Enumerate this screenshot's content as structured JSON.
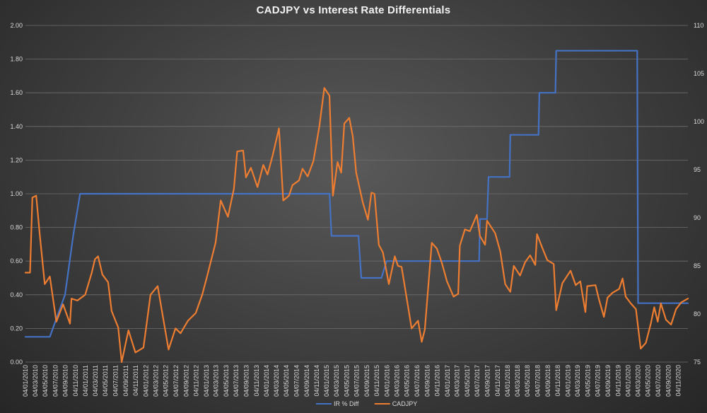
{
  "chart_data": {
    "type": "line",
    "title": "CADJPY vs Interest Rate Differentials",
    "legend_placement": "bottom",
    "grid": true,
    "y_left": {
      "lim": [
        0,
        2
      ],
      "ticks": [
        "0.00",
        "0.20",
        "0.40",
        "0.60",
        "0.80",
        "1.00",
        "1.20",
        "1.40",
        "1.60",
        "1.80",
        "2.00"
      ]
    },
    "y_right": {
      "lim": [
        75,
        110
      ],
      "ticks": [
        "75",
        "80",
        "85",
        "90",
        "95",
        "100",
        "105",
        "110"
      ]
    },
    "x_range": [
      "2010-01-04",
      "2020-12-31"
    ],
    "x_ticks": [
      "04/01/2010",
      "04/03/2010",
      "04/05/2010",
      "04/07/2010",
      "04/09/2010",
      "04/11/2010",
      "04/01/2011",
      "04/03/2011",
      "04/05/2011",
      "04/07/2011",
      "04/09/2011",
      "04/11/2011",
      "04/01/2012",
      "04/03/2012",
      "04/05/2012",
      "04/07/2012",
      "04/09/2012",
      "04/11/2012",
      "04/01/2013",
      "04/03/2013",
      "04/05/2013",
      "04/07/2013",
      "04/09/2013",
      "04/11/2013",
      "04/01/2014",
      "04/03/2014",
      "04/05/2014",
      "04/07/2014",
      "04/09/2014",
      "04/11/2014",
      "04/01/2015",
      "04/03/2015",
      "04/05/2015",
      "04/07/2015",
      "04/09/2015",
      "04/11/2015",
      "04/01/2016",
      "04/03/2016",
      "04/05/2016",
      "04/07/2016",
      "04/09/2016",
      "04/11/2016",
      "04/01/2017",
      "04/03/2017",
      "04/05/2017",
      "04/07/2017",
      "04/09/2017",
      "04/11/2017",
      "04/01/2018",
      "04/03/2018",
      "04/05/2018",
      "04/07/2018",
      "04/09/2018",
      "04/11/2018",
      "04/01/2019",
      "04/03/2019",
      "04/05/2019",
      "04/07/2019",
      "04/09/2019",
      "04/11/2019",
      "04/01/2020",
      "04/03/2020",
      "04/05/2020",
      "04/07/2020",
      "04/09/2020",
      "04/11/2020"
    ],
    "series": [
      {
        "name": "IR % Diff",
        "axis": "left",
        "color": "#4472c4",
        "points": [
          [
            "2010-01-04",
            0.15
          ],
          [
            "2010-06-01",
            0.15
          ],
          [
            "2010-09-01",
            0.4
          ],
          [
            "2010-10-20",
            0.75
          ],
          [
            "2010-12-01",
            1.0
          ],
          [
            "2015-01-21",
            1.0
          ],
          [
            "2015-02-01",
            0.75
          ],
          [
            "2015-07-15",
            0.75
          ],
          [
            "2015-08-01",
            0.5
          ],
          [
            "2015-12-01",
            0.5
          ],
          [
            "2016-01-01",
            0.6
          ],
          [
            "2017-07-15",
            0.6
          ],
          [
            "2017-07-20",
            0.85
          ],
          [
            "2017-09-01",
            0.85
          ],
          [
            "2017-09-10",
            1.1
          ],
          [
            "2018-01-15",
            1.1
          ],
          [
            "2018-01-20",
            1.35
          ],
          [
            "2018-07-10",
            1.35
          ],
          [
            "2018-07-15",
            1.6
          ],
          [
            "2018-10-20",
            1.6
          ],
          [
            "2018-10-25",
            1.85
          ],
          [
            "2020-02-28",
            1.85
          ],
          [
            "2020-03-04",
            0.35
          ],
          [
            "2020-12-31",
            0.35
          ]
        ]
      },
      {
        "name": "CADJPY",
        "axis": "right",
        "color": "#ed7d31",
        "points": [
          [
            "2010-01-04",
            84.3
          ],
          [
            "2010-02-01",
            84.3
          ],
          [
            "2010-02-15",
            92.1
          ],
          [
            "2010-03-10",
            92.3
          ],
          [
            "2010-04-01",
            88.2
          ],
          [
            "2010-05-01",
            83.1
          ],
          [
            "2010-06-01",
            83.9
          ],
          [
            "2010-07-10",
            79.2
          ],
          [
            "2010-08-20",
            81.0
          ],
          [
            "2010-10-01",
            79.0
          ],
          [
            "2010-10-10",
            81.6
          ],
          [
            "2010-11-15",
            81.4
          ],
          [
            "2011-01-01",
            82.0
          ],
          [
            "2011-02-10",
            84.3
          ],
          [
            "2011-03-01",
            85.7
          ],
          [
            "2011-03-20",
            86.0
          ],
          [
            "2011-04-15",
            84.1
          ],
          [
            "2011-05-20",
            83.3
          ],
          [
            "2011-06-10",
            80.3
          ],
          [
            "2011-07-20",
            78.6
          ],
          [
            "2011-08-10",
            75.0
          ],
          [
            "2011-09-20",
            78.3
          ],
          [
            "2011-11-01",
            76.0
          ],
          [
            "2011-12-20",
            76.5
          ],
          [
            "2012-02-01",
            82.0
          ],
          [
            "2012-03-15",
            82.9
          ],
          [
            "2012-05-20",
            76.3
          ],
          [
            "2012-07-01",
            78.5
          ],
          [
            "2012-08-01",
            78.0
          ],
          [
            "2012-09-15",
            79.3
          ],
          [
            "2012-11-01",
            80.1
          ],
          [
            "2012-12-10",
            82.0
          ],
          [
            "2013-01-10",
            84.0
          ],
          [
            "2013-03-01",
            87.4
          ],
          [
            "2013-04-01",
            91.8
          ],
          [
            "2013-05-15",
            90.1
          ],
          [
            "2013-06-20",
            93.0
          ],
          [
            "2013-07-10",
            96.9
          ],
          [
            "2013-08-15",
            97.0
          ],
          [
            "2013-09-01",
            94.2
          ],
          [
            "2013-10-01",
            95.2
          ],
          [
            "2013-11-10",
            93.2
          ],
          [
            "2013-12-15",
            95.5
          ],
          [
            "2014-01-10",
            94.5
          ],
          [
            "2014-02-10",
            96.5
          ],
          [
            "2014-03-20",
            99.3
          ],
          [
            "2014-04-15",
            91.8
          ],
          [
            "2014-05-20",
            92.3
          ],
          [
            "2014-06-10",
            93.4
          ],
          [
            "2014-07-20",
            93.9
          ],
          [
            "2014-08-10",
            95.1
          ],
          [
            "2014-09-10",
            94.3
          ],
          [
            "2014-10-15",
            95.9
          ],
          [
            "2014-11-20",
            99.5
          ],
          [
            "2014-12-20",
            103.5
          ],
          [
            "2015-01-20",
            102.7
          ],
          [
            "2015-02-10",
            92.3
          ],
          [
            "2015-03-10",
            95.8
          ],
          [
            "2015-04-01",
            94.7
          ],
          [
            "2015-04-20",
            99.8
          ],
          [
            "2015-05-20",
            100.4
          ],
          [
            "2015-06-10",
            98.5
          ],
          [
            "2015-07-01",
            94.7
          ],
          [
            "2015-08-10",
            91.6
          ],
          [
            "2015-09-10",
            89.8
          ],
          [
            "2015-10-01",
            92.6
          ],
          [
            "2015-10-20",
            92.5
          ],
          [
            "2015-11-15",
            87.2
          ],
          [
            "2015-12-10",
            86.4
          ],
          [
            "2016-01-15",
            83.1
          ],
          [
            "2016-02-20",
            86.0
          ],
          [
            "2016-03-10",
            85.0
          ],
          [
            "2016-04-01",
            84.9
          ],
          [
            "2016-06-01",
            78.5
          ],
          [
            "2016-07-10",
            79.3
          ],
          [
            "2016-08-01",
            77.1
          ],
          [
            "2016-08-20",
            78.4
          ],
          [
            "2016-10-01",
            87.4
          ],
          [
            "2016-11-01",
            86.8
          ],
          [
            "2016-12-01",
            85.3
          ],
          [
            "2017-01-01",
            83.4
          ],
          [
            "2017-02-10",
            81.8
          ],
          [
            "2017-03-10",
            82.1
          ],
          [
            "2017-03-20",
            87.1
          ],
          [
            "2017-04-20",
            88.8
          ],
          [
            "2017-05-20",
            88.6
          ],
          [
            "2017-07-01",
            90.3
          ],
          [
            "2017-07-20",
            88.1
          ],
          [
            "2017-08-20",
            87.2
          ],
          [
            "2017-09-01",
            89.7
          ],
          [
            "2017-10-20",
            88.4
          ],
          [
            "2017-11-20",
            86.5
          ],
          [
            "2017-12-20",
            83.1
          ],
          [
            "2018-01-20",
            82.3
          ],
          [
            "2018-02-10",
            85.0
          ],
          [
            "2018-03-20",
            84.0
          ],
          [
            "2018-04-20",
            85.4
          ],
          [
            "2018-05-20",
            86.1
          ],
          [
            "2018-06-20",
            85.1
          ],
          [
            "2018-07-01",
            88.3
          ],
          [
            "2018-08-01",
            86.9
          ],
          [
            "2018-09-01",
            85.6
          ],
          [
            "2018-10-10",
            85.2
          ],
          [
            "2018-10-25",
            80.4
          ],
          [
            "2018-12-01",
            83.2
          ],
          [
            "2019-01-20",
            84.5
          ],
          [
            "2019-02-20",
            83.0
          ],
          [
            "2019-03-20",
            83.4
          ],
          [
            "2019-04-20",
            80.2
          ],
          [
            "2019-05-01",
            82.9
          ],
          [
            "2019-06-20",
            83.0
          ],
          [
            "2019-07-10",
            81.6
          ],
          [
            "2019-08-10",
            79.7
          ],
          [
            "2019-09-01",
            81.7
          ],
          [
            "2019-10-01",
            82.2
          ],
          [
            "2019-11-10",
            82.6
          ],
          [
            "2019-12-01",
            83.7
          ],
          [
            "2019-12-20",
            81.8
          ],
          [
            "2020-01-20",
            81.1
          ],
          [
            "2020-02-20",
            80.5
          ],
          [
            "2020-03-20",
            76.4
          ],
          [
            "2020-04-20",
            77.0
          ],
          [
            "2020-05-20",
            79.0
          ],
          [
            "2020-06-10",
            80.7
          ],
          [
            "2020-07-01",
            79.2
          ],
          [
            "2020-07-20",
            81.1
          ],
          [
            "2020-08-20",
            79.4
          ],
          [
            "2020-09-20",
            78.9
          ],
          [
            "2020-10-20",
            80.5
          ],
          [
            "2020-11-20",
            81.2
          ],
          [
            "2020-12-31",
            81.6
          ]
        ]
      }
    ]
  }
}
